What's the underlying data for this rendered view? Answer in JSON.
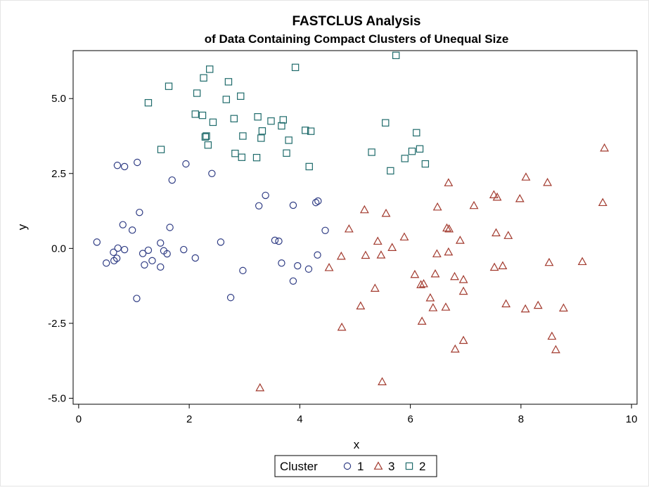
{
  "chart_data": {
    "type": "scatter",
    "title": "FASTCLUS Analysis",
    "subtitle": "of Data Containing Compact Clusters of Unequal Size",
    "xlabel": "x",
    "ylabel": "y",
    "xlim": [
      -0.1,
      10.1
    ],
    "ylim": [
      -5.2,
      6.6
    ],
    "xticks": [
      0,
      2,
      4,
      6,
      8,
      10
    ],
    "xtick_labels": [
      "0",
      "2",
      "4",
      "6",
      "8",
      "10"
    ],
    "yticks": [
      -5.0,
      -2.5,
      0.0,
      2.5,
      5.0
    ],
    "ytick_labels": [
      "-5.0",
      "-2.5",
      "0.0",
      "2.5",
      "5.0"
    ],
    "grid": false,
    "legend": {
      "title": "Cluster",
      "placement": "bottom-center",
      "entries": [
        "1",
        "3",
        "2"
      ]
    },
    "series": [
      {
        "name": "1",
        "marker": "circle",
        "color": "#2f3c84",
        "points": [
          [
            0.33,
            0.21
          ],
          [
            0.5,
            -0.49
          ],
          [
            0.63,
            -0.13
          ],
          [
            0.64,
            -0.41
          ],
          [
            0.69,
            -0.33
          ],
          [
            0.7,
            2.77
          ],
          [
            0.71,
            0.01
          ],
          [
            0.8,
            0.79
          ],
          [
            0.83,
            2.73
          ],
          [
            0.83,
            -0.04
          ],
          [
            0.97,
            0.61
          ],
          [
            1.05,
            -1.67
          ],
          [
            1.06,
            2.87
          ],
          [
            1.1,
            1.2
          ],
          [
            1.16,
            -0.17
          ],
          [
            1.19,
            -0.55
          ],
          [
            1.26,
            -0.06
          ],
          [
            1.33,
            -0.41
          ],
          [
            1.48,
            0.18
          ],
          [
            1.48,
            -0.62
          ],
          [
            1.54,
            -0.08
          ],
          [
            1.6,
            -0.18
          ],
          [
            1.65,
            0.7
          ],
          [
            1.69,
            2.28
          ],
          [
            1.9,
            -0.04
          ],
          [
            1.94,
            2.82
          ],
          [
            2.11,
            -0.32
          ],
          [
            2.41,
            2.5
          ],
          [
            2.57,
            0.21
          ],
          [
            2.75,
            -1.64
          ],
          [
            2.97,
            -0.74
          ],
          [
            3.26,
            1.42
          ],
          [
            3.38,
            1.77
          ],
          [
            3.55,
            0.27
          ],
          [
            3.62,
            0.24
          ],
          [
            3.67,
            -0.49
          ],
          [
            3.88,
            1.44
          ],
          [
            3.88,
            -1.09
          ],
          [
            3.96,
            -0.58
          ],
          [
            4.16,
            -0.69
          ],
          [
            4.29,
            1.53
          ],
          [
            4.32,
            -0.22
          ],
          [
            4.33,
            1.58
          ],
          [
            4.46,
            0.6
          ]
        ]
      },
      {
        "name": "3",
        "marker": "triangle",
        "color": "#a23a2e",
        "points": [
          [
            3.28,
            -4.65
          ],
          [
            4.53,
            -0.64
          ],
          [
            4.75,
            -0.26
          ],
          [
            4.76,
            -2.63
          ],
          [
            4.89,
            0.65
          ],
          [
            5.1,
            -1.92
          ],
          [
            5.17,
            1.29
          ],
          [
            5.19,
            -0.23
          ],
          [
            5.36,
            -1.33
          ],
          [
            5.41,
            0.24
          ],
          [
            5.47,
            -0.22
          ],
          [
            5.49,
            -4.45
          ],
          [
            5.56,
            1.17
          ],
          [
            5.67,
            0.03
          ],
          [
            5.89,
            0.38
          ],
          [
            6.08,
            -0.87
          ],
          [
            6.19,
            -1.21
          ],
          [
            6.21,
            -2.43
          ],
          [
            6.24,
            -1.18
          ],
          [
            6.36,
            -1.65
          ],
          [
            6.41,
            -1.98
          ],
          [
            6.45,
            -0.85
          ],
          [
            6.48,
            -0.18
          ],
          [
            6.49,
            1.38
          ],
          [
            6.64,
            -1.96
          ],
          [
            6.66,
            0.68
          ],
          [
            6.69,
            -0.12
          ],
          [
            6.69,
            2.19
          ],
          [
            6.7,
            0.65
          ],
          [
            6.8,
            -0.94
          ],
          [
            6.81,
            -3.36
          ],
          [
            6.9,
            0.27
          ],
          [
            6.96,
            -1.43
          ],
          [
            6.96,
            -1.04
          ],
          [
            6.96,
            -3.07
          ],
          [
            7.15,
            1.43
          ],
          [
            7.51,
            1.79
          ],
          [
            7.52,
            -0.63
          ],
          [
            7.55,
            0.52
          ],
          [
            7.57,
            1.71
          ],
          [
            7.67,
            -0.58
          ],
          [
            7.73,
            -1.85
          ],
          [
            7.77,
            0.43
          ],
          [
            7.98,
            1.66
          ],
          [
            8.08,
            -2.02
          ],
          [
            8.09,
            2.38
          ],
          [
            8.31,
            -1.9
          ],
          [
            8.48,
            2.2
          ],
          [
            8.51,
            -0.47
          ],
          [
            8.56,
            -2.93
          ],
          [
            8.63,
            -3.38
          ],
          [
            8.77,
            -1.99
          ],
          [
            9.11,
            -0.44
          ],
          [
            9.48,
            1.53
          ],
          [
            9.51,
            3.35
          ]
        ]
      },
      {
        "name": "2",
        "marker": "square",
        "color": "#1f6b6b",
        "points": [
          [
            1.26,
            4.86
          ],
          [
            1.49,
            3.3
          ],
          [
            1.63,
            5.41
          ],
          [
            2.11,
            4.48
          ],
          [
            2.14,
            5.18
          ],
          [
            2.24,
            4.44
          ],
          [
            2.26,
            5.69
          ],
          [
            2.29,
            3.72
          ],
          [
            2.31,
            3.75
          ],
          [
            2.34,
            3.45
          ],
          [
            2.37,
            5.98
          ],
          [
            2.43,
            4.21
          ],
          [
            2.67,
            4.97
          ],
          [
            2.71,
            5.56
          ],
          [
            2.81,
            4.33
          ],
          [
            2.83,
            3.17
          ],
          [
            2.93,
            5.08
          ],
          [
            2.95,
            3.04
          ],
          [
            2.97,
            3.75
          ],
          [
            3.22,
            3.03
          ],
          [
            3.24,
            4.39
          ],
          [
            3.3,
            3.68
          ],
          [
            3.32,
            3.92
          ],
          [
            3.48,
            4.25
          ],
          [
            3.67,
            4.09
          ],
          [
            3.7,
            4.29
          ],
          [
            3.76,
            3.18
          ],
          [
            3.8,
            3.61
          ],
          [
            3.92,
            6.04
          ],
          [
            4.1,
            3.94
          ],
          [
            4.17,
            2.73
          ],
          [
            4.2,
            3.91
          ],
          [
            5.3,
            3.21
          ],
          [
            5.55,
            4.19
          ],
          [
            5.64,
            2.59
          ],
          [
            5.74,
            6.44
          ],
          [
            5.9,
            3.0
          ],
          [
            6.03,
            3.24
          ],
          [
            6.11,
            3.86
          ],
          [
            6.17,
            3.32
          ],
          [
            6.27,
            2.82
          ]
        ]
      }
    ]
  }
}
